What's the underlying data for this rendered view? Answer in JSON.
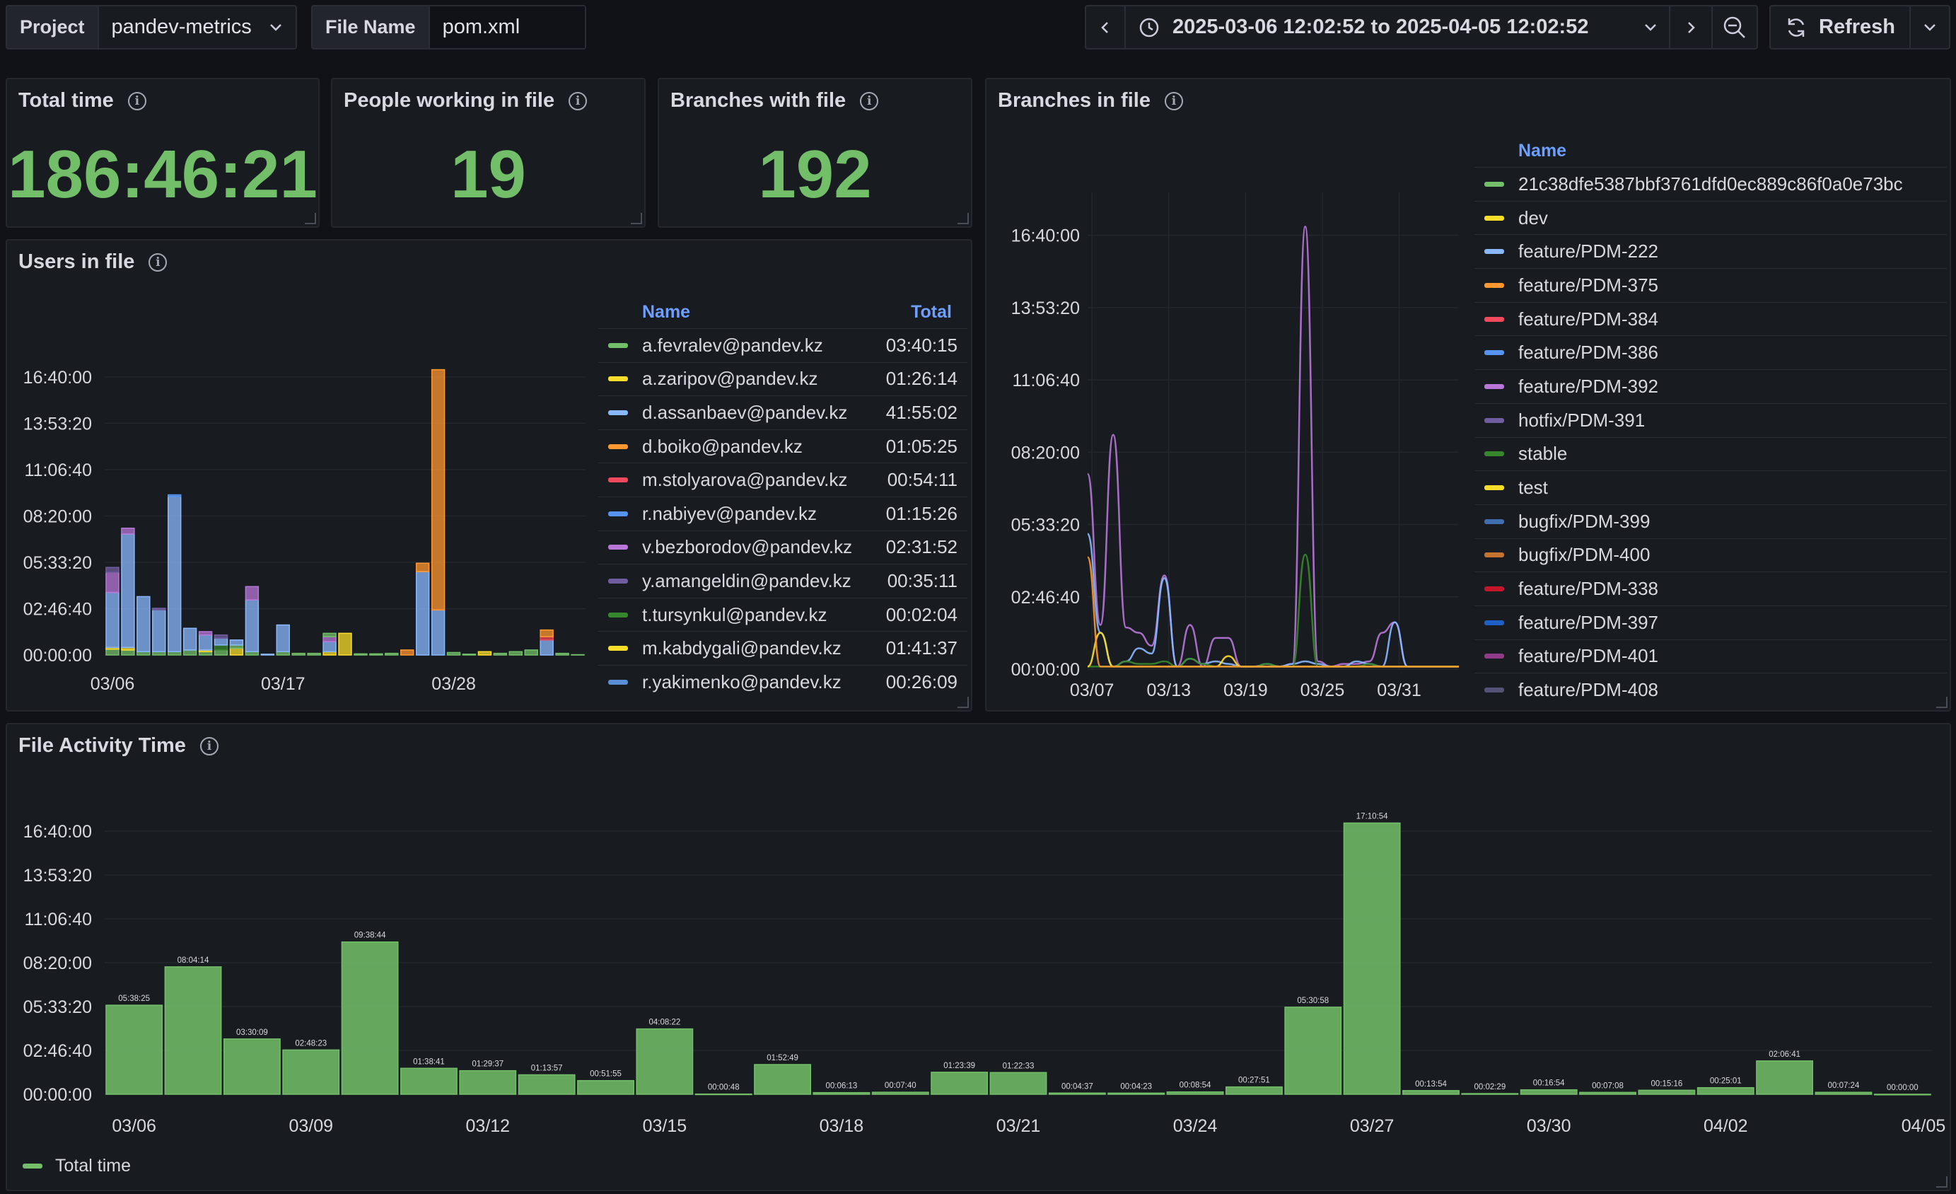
{
  "toolbar": {
    "project_label": "Project",
    "project_value": "pandev-metrics",
    "file_label": "File Name",
    "file_value": "pom.xml",
    "time_range": "2025-03-06 12:02:52 to 2025-04-05 12:02:52",
    "refresh_label": "Refresh"
  },
  "stats": {
    "total_time_title": "Total time",
    "total_time_value": "186:46:21",
    "people_title": "People working in file",
    "people_value": "19",
    "branches_title": "Branches with file",
    "branches_value": "192"
  },
  "users_panel": {
    "title": "Users in file",
    "col_name": "Name",
    "col_total": "Total",
    "yticks": [
      "16:40:00",
      "13:53:20",
      "11:06:40",
      "08:20:00",
      "05:33:20",
      "02:46:40",
      "00:00:00"
    ],
    "xticks": [
      "03/06",
      "03/17",
      "03/28"
    ],
    "users": [
      {
        "name": "a.fevralev@pandev.kz",
        "total": "03:40:15",
        "color": "#73bf69"
      },
      {
        "name": "a.zaripov@pandev.kz",
        "total": "01:26:14",
        "color": "#fade2a"
      },
      {
        "name": "d.assanbaev@pandev.kz",
        "total": "41:55:02",
        "color": "#8ab8ff"
      },
      {
        "name": "d.boiko@pandev.kz",
        "total": "01:05:25",
        "color": "#ff9830"
      },
      {
        "name": "m.stolyarova@pandev.kz",
        "total": "00:54:11",
        "color": "#f2495c"
      },
      {
        "name": "r.nabiyev@pandev.kz",
        "total": "01:15:26",
        "color": "#5794f2"
      },
      {
        "name": "v.bezborodov@pandev.kz",
        "total": "02:31:52",
        "color": "#b877d9"
      },
      {
        "name": "y.amangeldin@pandev.kz",
        "total": "00:35:11",
        "color": "#705da0"
      },
      {
        "name": "t.tursynkul@pandev.kz",
        "total": "00:02:04",
        "color": "#37872d"
      },
      {
        "name": "m.kabdygali@pandev.kz",
        "total": "01:41:37",
        "color": "#fade2a"
      },
      {
        "name": "r.yakimenko@pandev.kz",
        "total": "00:26:09",
        "color": "#5a8fd6"
      }
    ]
  },
  "branches_panel": {
    "title": "Branches in file",
    "col_name": "Name",
    "yticks": [
      "16:40:00",
      "13:53:20",
      "11:06:40",
      "08:20:00",
      "05:33:20",
      "02:46:40",
      "00:00:00"
    ],
    "xticks": [
      "03/07",
      "03/13",
      "03/19",
      "03/25",
      "03/31"
    ],
    "branches": [
      {
        "name": "21c38dfe5387bbf3761dfd0ec889c86f0a0e73bc",
        "color": "#73bf69"
      },
      {
        "name": "dev",
        "color": "#fade2a"
      },
      {
        "name": "feature/PDM-222",
        "color": "#8ab8ff"
      },
      {
        "name": "feature/PDM-375",
        "color": "#ff9830"
      },
      {
        "name": "feature/PDM-384",
        "color": "#f2495c"
      },
      {
        "name": "feature/PDM-386",
        "color": "#5794f2"
      },
      {
        "name": "feature/PDM-392",
        "color": "#b877d9"
      },
      {
        "name": "hotfix/PDM-391",
        "color": "#705da0"
      },
      {
        "name": "stable",
        "color": "#37872d"
      },
      {
        "name": "test",
        "color": "#fade2a"
      },
      {
        "name": "bugfix/PDM-399",
        "color": "#3f6fb0"
      },
      {
        "name": "bugfix/PDM-400",
        "color": "#c4742f"
      },
      {
        "name": "feature/PDM-338",
        "color": "#c4162a"
      },
      {
        "name": "feature/PDM-397",
        "color": "#1f60c4"
      },
      {
        "name": "feature/PDM-401",
        "color": "#8f3b88"
      },
      {
        "name": "feature/PDM-408",
        "color": "#55527a"
      }
    ]
  },
  "activity_panel": {
    "title": "File Activity Time",
    "legend": "Total time",
    "color": "#73bf69",
    "yticks": [
      "16:40:00",
      "13:53:20",
      "11:06:40",
      "08:20:00",
      "05:33:20",
      "02:46:40",
      "00:00:00"
    ],
    "xticks": [
      "03/06",
      "03/09",
      "03/12",
      "03/15",
      "03/18",
      "03/21",
      "03/24",
      "03/27",
      "03/30",
      "04/02",
      "04/05"
    ]
  },
  "chart_data": [
    {
      "type": "bar",
      "title": "File Activity Time",
      "categories": [
        "03/06",
        "03/07",
        "03/08",
        "03/09",
        "03/10",
        "03/11",
        "03/12",
        "03/13",
        "03/14",
        "03/15",
        "03/16",
        "03/17",
        "03/18",
        "03/19",
        "03/20",
        "03/21",
        "03/22",
        "03/23",
        "03/24",
        "03/25",
        "03/26",
        "03/27",
        "03/28",
        "03/29",
        "03/30",
        "03/31",
        "04/01",
        "04/02",
        "04/03",
        "04/04",
        "04/05"
      ],
      "series": [
        {
          "name": "Total time",
          "values": [
            "05:38:25",
            "08:04:14",
            "03:30:09",
            "02:48:23",
            "09:38:44",
            "01:38:41",
            "01:29:37",
            "01:13:57",
            "00:51:55",
            "04:08:22",
            "00:00:48",
            "01:52:49",
            "00:06:13",
            "00:07:40",
            "01:23:39",
            "01:22:33",
            "00:04:37",
            "00:04:23",
            "00:08:54",
            "00:27:51",
            "05:30:58",
            "17:10:54",
            "00:13:54",
            "00:02:29",
            "00:16:54",
            "00:07:08",
            "00:15:16",
            "00:25:01",
            "02:06:41",
            "00:07:24",
            "00:00:00"
          ]
        }
      ],
      "ylim": [
        "00:00:00",
        "16:40:00"
      ]
    },
    {
      "type": "bar",
      "title": "Users in file",
      "stacked": true,
      "x_start": "03/06",
      "x_end": "04/05",
      "stacks": [
        [
          [
            "#73bf69",
            0.35
          ],
          [
            "#fade2a",
            0.1
          ],
          [
            "#8ab8ff",
            3.3
          ],
          [
            "#b877d9",
            1.2
          ],
          [
            "#705da0",
            0.3
          ]
        ],
        [
          [
            "#73bf69",
            0.3
          ],
          [
            "#fade2a",
            0.15
          ],
          [
            "#8ab8ff",
            6.8
          ],
          [
            "#b877d9",
            0.35
          ]
        ],
        [
          [
            "#73bf69",
            0.2
          ],
          [
            "#8ab8ff",
            3.3
          ]
        ],
        [
          [
            "#73bf69",
            0.2
          ],
          [
            "#8ab8ff",
            2.5
          ],
          [
            "#705da0",
            0.1
          ]
        ],
        [
          [
            "#73bf69",
            0.2
          ],
          [
            "#8ab8ff",
            9.3
          ],
          [
            "#5794f2",
            0.1
          ]
        ],
        [
          [
            "#73bf69",
            0.3
          ],
          [
            "#8ab8ff",
            1.3
          ]
        ],
        [
          [
            "#73bf69",
            0.2
          ],
          [
            "#fade2a",
            0.1
          ],
          [
            "#8ab8ff",
            0.9
          ],
          [
            "#b877d9",
            0.2
          ]
        ],
        [
          [
            "#73bf69",
            0.3
          ],
          [
            "#37872d",
            0.3
          ],
          [
            "#8ab8ff",
            0.4
          ],
          [
            "#705da0",
            0.2
          ]
        ],
        [
          [
            "#fade2a",
            0.4
          ],
          [
            "#73bf69",
            0.2
          ],
          [
            "#8ab8ff",
            0.3
          ]
        ],
        [
          [
            "#73bf69",
            0.2
          ],
          [
            "#8ab8ff",
            3.1
          ],
          [
            "#b877d9",
            0.8
          ]
        ],
        [
          [
            "#8ab8ff",
            0.05
          ]
        ],
        [
          [
            "#73bf69",
            0.2
          ],
          [
            "#8ab8ff",
            1.6
          ]
        ],
        [
          [
            "#73bf69",
            0.1
          ]
        ],
        [
          [
            "#73bf69",
            0.1
          ]
        ],
        [
          [
            "#fade2a",
            0.2
          ],
          [
            "#8ab8ff",
            0.6
          ],
          [
            "#b877d9",
            0.3
          ],
          [
            "#73bf69",
            0.2
          ]
        ],
        [
          [
            "#fade2a",
            1.3
          ]
        ],
        [
          [
            "#73bf69",
            0.07
          ]
        ],
        [
          [
            "#73bf69",
            0.07
          ]
        ],
        [
          [
            "#73bf69",
            0.1
          ]
        ],
        [
          [
            "#ff9830",
            0.3
          ]
        ],
        [
          [
            "#8ab8ff",
            5.0
          ],
          [
            "#ff9830",
            0.5
          ]
        ],
        [
          [
            "#8ab8ff",
            2.7
          ],
          [
            "#ff9830",
            14.4
          ]
        ],
        [
          [
            "#73bf69",
            0.15
          ]
        ],
        [
          [
            "#73bf69",
            0.05
          ]
        ],
        [
          [
            "#fade2a",
            0.2
          ]
        ],
        [
          [
            "#73bf69",
            0.1
          ]
        ],
        [
          [
            "#73bf69",
            0.2
          ]
        ],
        [
          [
            "#73bf69",
            0.3
          ]
        ],
        [
          [
            "#8ab8ff",
            0.9
          ],
          [
            "#f2495c",
            0.2
          ],
          [
            "#ff9830",
            0.4
          ]
        ],
        [
          [
            "#73bf69",
            0.1
          ]
        ],
        [
          [
            "#73bf69",
            0.02
          ]
        ]
      ],
      "ylim": [
        0,
        18.1
      ]
    },
    {
      "type": "line",
      "title": "Branches in file",
      "x_start": "03/06",
      "x_end": "04/05",
      "series": [
        {
          "name": "feature/PDM-392",
          "color": "#b877d9",
          "values": [
            7.5,
            1.7,
            9.0,
            1.6,
            1.4,
            0.9,
            3.6,
            0.1,
            1.7,
            0.1,
            1.2,
            1.2,
            0.1,
            0.1,
            0.1,
            0.1,
            0.2,
            17.0,
            0.3,
            0.1,
            0.2,
            0.2,
            0.3,
            1.4,
            1.8,
            0.1,
            0.1,
            0.1,
            0.1,
            0.1
          ]
        },
        {
          "name": "feature/PDM-222",
          "color": "#8ab8ff",
          "values": [
            5.2,
            1.4,
            0.1,
            0.3,
            0.8,
            0.6,
            3.5,
            0.1,
            0.4,
            0.2,
            0.3,
            0.2,
            0.1,
            0.1,
            0.2,
            0.1,
            0.2,
            0.3,
            0.2,
            0.1,
            0.1,
            0.3,
            0.2,
            0.1,
            1.8,
            0.1,
            0.1,
            0.1,
            0.1,
            0.1
          ]
        },
        {
          "name": "stable",
          "color": "#37872d",
          "values": [
            0.1,
            0.1,
            0.1,
            0.3,
            0.2,
            0.2,
            0.3,
            0.1,
            0.4,
            0.2,
            0.1,
            0.1,
            0.1,
            0.1,
            0.2,
            0.1,
            0.1,
            4.4,
            0.1,
            0.1,
            0.1,
            0.1,
            0.2,
            0.1,
            0.1,
            0.1,
            0.1,
            0.1,
            0.1,
            0.1
          ]
        },
        {
          "name": "dev",
          "color": "#fade2a",
          "values": [
            0.1,
            1.4,
            0.1,
            0.1,
            0.1,
            0.1,
            0.1,
            0.1,
            0.1,
            0.1,
            0.1,
            0.5,
            0.1,
            0.1,
            0.1,
            0.1,
            0.1,
            0.1,
            0.1,
            0.1,
            0.1,
            0.1,
            0.1,
            0.1,
            0.1,
            0.1,
            0.1,
            0.1,
            0.1,
            0.1
          ]
        },
        {
          "name": "feature/PDM-375",
          "color": "#ff9830",
          "values": [
            4.3,
            0.1,
            0.1,
            0.1,
            0.1,
            0.1,
            0.1,
            0.1,
            0.1,
            0.1,
            0.1,
            0.1,
            0.1,
            0.1,
            0.1,
            0.1,
            0.1,
            0.1,
            0.1,
            0.1,
            0.1,
            0.1,
            0.1,
            0.1,
            0.1,
            0.1,
            0.1,
            0.1,
            0.1,
            0.1
          ]
        }
      ],
      "ylim": [
        0,
        17.5
      ]
    }
  ]
}
